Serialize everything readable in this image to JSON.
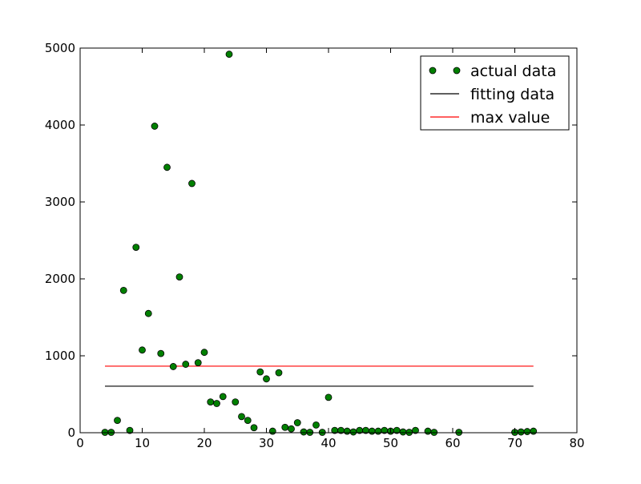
{
  "chart_data": {
    "type": "scatter",
    "title": "",
    "xlabel": "",
    "ylabel": "",
    "xlim": [
      0,
      80
    ],
    "ylim": [
      0,
      5000
    ],
    "xticks": [
      0,
      10,
      20,
      30,
      40,
      50,
      60,
      70,
      80
    ],
    "yticks": [
      0,
      1000,
      2000,
      3000,
      4000,
      5000
    ],
    "xtick_labels": [
      "0",
      "10",
      "20",
      "30",
      "40",
      "50",
      "60",
      "70",
      "80"
    ],
    "ytick_labels": [
      "0",
      "1000",
      "2000",
      "3000",
      "4000",
      "5000"
    ],
    "grid": false,
    "legend_position": "top-right",
    "series": [
      {
        "name": "actual data",
        "kind": "points",
        "color": "#008000",
        "x": [
          4,
          5,
          6,
          7,
          8,
          9,
          10,
          11,
          12,
          13,
          14,
          15,
          16,
          17,
          18,
          19,
          20,
          21,
          22,
          23,
          24,
          25,
          26,
          27,
          28,
          29,
          30,
          31,
          32,
          33,
          34,
          35,
          36,
          37,
          38,
          39,
          40,
          41,
          42,
          43,
          44,
          45,
          46,
          47,
          48,
          49,
          50,
          51,
          52,
          53,
          54,
          56,
          57,
          61,
          70,
          71,
          72,
          73
        ],
        "y": [
          5,
          5,
          160,
          1850,
          30,
          2410,
          1075,
          1550,
          3985,
          1030,
          3450,
          860,
          2025,
          890,
          3240,
          910,
          1045,
          400,
          380,
          470,
          4920,
          400,
          210,
          160,
          65,
          790,
          700,
          20,
          780,
          70,
          50,
          130,
          10,
          5,
          100,
          5,
          460,
          30,
          30,
          20,
          10,
          30,
          30,
          20,
          20,
          30,
          20,
          30,
          10,
          5,
          30,
          20,
          5,
          5,
          5,
          10,
          15,
          20
        ]
      },
      {
        "name": "fitting data",
        "kind": "hline",
        "color": "#000000",
        "y": 605,
        "x_range": [
          4,
          73
        ]
      },
      {
        "name": "max value",
        "kind": "hline",
        "color": "#ff0000",
        "y": 865,
        "x_range": [
          4,
          73
        ]
      }
    ]
  }
}
